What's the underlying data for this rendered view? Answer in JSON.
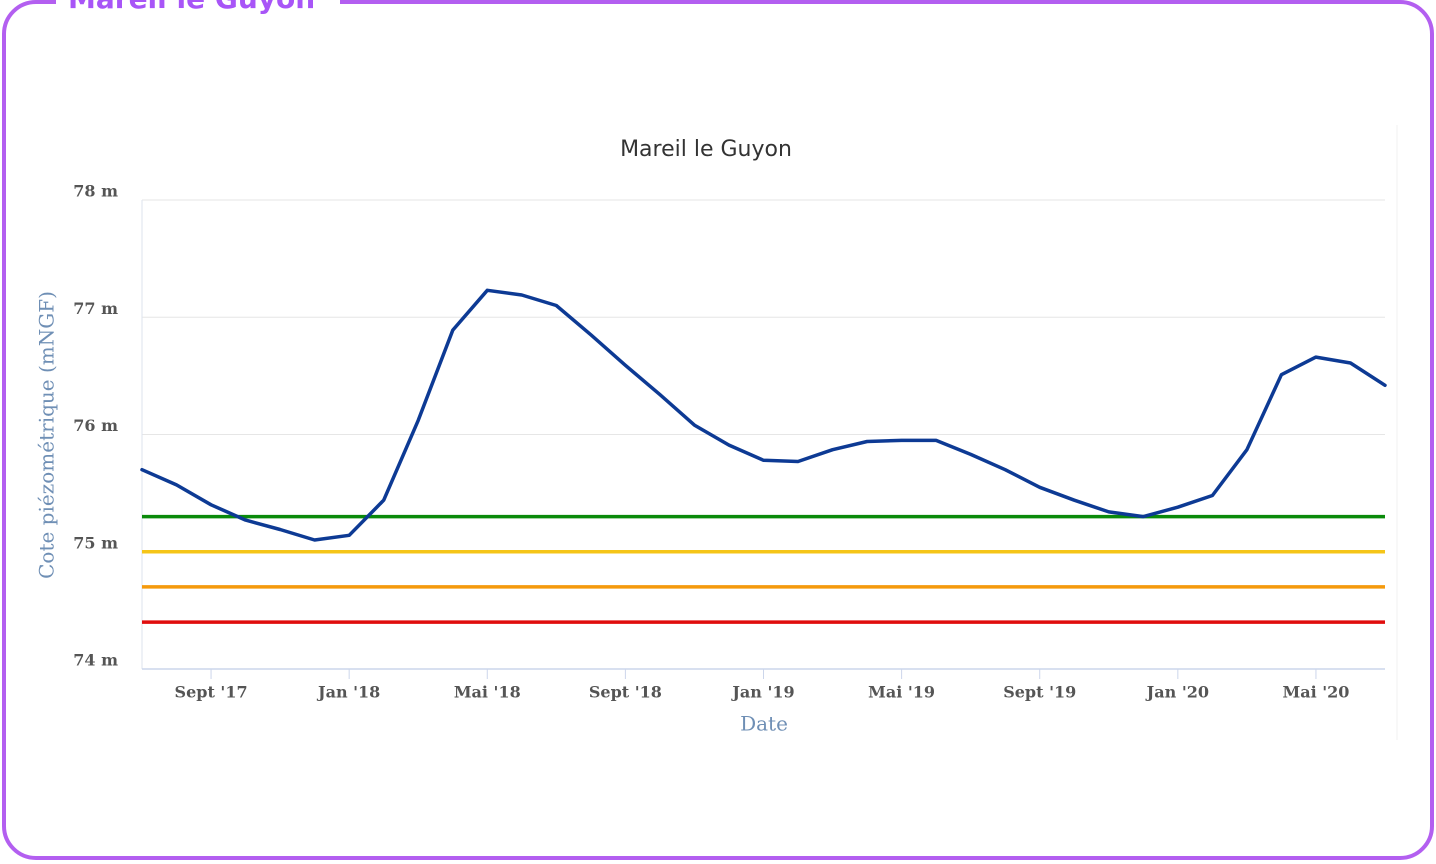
{
  "panel_title": "Mareil le Guyon",
  "chart_data": {
    "type": "line",
    "title": "Mareil le Guyon",
    "y_label": "Cote piézométrique (mNGF)",
    "x_label": "Date",
    "x": [
      "2017-07",
      "2017-08",
      "2017-09",
      "2017-10",
      "2017-11",
      "2017-12",
      "2018-01",
      "2018-02",
      "2018-03",
      "2018-04",
      "2018-05",
      "2018-06",
      "2018-07",
      "2018-08",
      "2018-09",
      "2018-10",
      "2018-11",
      "2018-12",
      "2019-01",
      "2019-02",
      "2019-03",
      "2019-04",
      "2019-05",
      "2019-06",
      "2019-07",
      "2019-08",
      "2019-09",
      "2019-10",
      "2019-11",
      "2019-12",
      "2020-01",
      "2020-02",
      "2020-03",
      "2020-04",
      "2020-05",
      "2020-06",
      "2020-07"
    ],
    "series": [
      {
        "color": "#0d3a94",
        "values": [
          75.7,
          75.57,
          75.4,
          75.27,
          75.19,
          75.1,
          75.14,
          75.44,
          76.12,
          76.89,
          77.23,
          77.19,
          77.1,
          76.85,
          76.59,
          76.34,
          76.08,
          75.91,
          75.78,
          75.77,
          75.87,
          75.94,
          75.95,
          75.95,
          75.83,
          75.7,
          75.55,
          75.44,
          75.34,
          75.3,
          75.38,
          75.48,
          75.87,
          76.51,
          76.66,
          76.61,
          76.42
        ]
      }
    ],
    "reference_lines": [
      {
        "value": 75.3,
        "color": "#0a8a0a"
      },
      {
        "value": 75.0,
        "color": "#f5c518"
      },
      {
        "value": 74.7,
        "color": "#f59a0c"
      },
      {
        "value": 74.4,
        "color": "#e00d0d"
      }
    ],
    "xlim": [
      "2017-07",
      "2020-07"
    ],
    "xticks": [
      {
        "value": "2017-09",
        "label": "Sept '17"
      },
      {
        "value": "2018-01",
        "label": "Jan '18"
      },
      {
        "value": "2018-05",
        "label": "Mai '18"
      },
      {
        "value": "2018-09",
        "label": "Sept '18"
      },
      {
        "value": "2019-01",
        "label": "Jan '19"
      },
      {
        "value": "2019-05",
        "label": "Mai '19"
      },
      {
        "value": "2019-09",
        "label": "Sept '19"
      },
      {
        "value": "2020-01",
        "label": "Jan '20"
      },
      {
        "value": "2020-05",
        "label": "Mai '20"
      }
    ],
    "ylim": [
      74,
      78
    ],
    "yticks": [
      {
        "value": 74,
        "label": "74 m"
      },
      {
        "value": 75,
        "label": "75 m"
      },
      {
        "value": 76,
        "label": "76 m"
      },
      {
        "value": 77,
        "label": "77 m"
      },
      {
        "value": 78,
        "label": "78 m"
      }
    ],
    "grid": true
  }
}
